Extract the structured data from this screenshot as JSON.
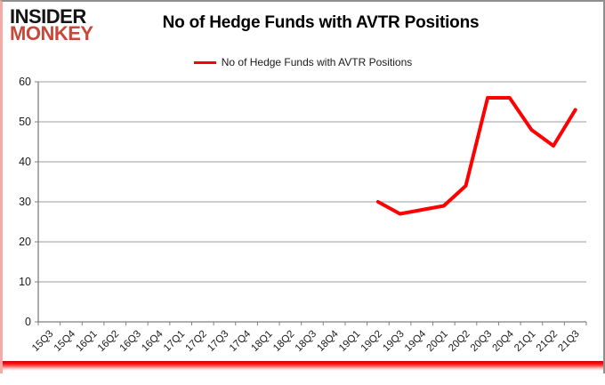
{
  "logo": {
    "line1": "INSIDER",
    "line2": "MONKEY",
    "line1_color": "#141414",
    "line2_color": "#c7483b"
  },
  "header": {
    "title": "No of Hedge Funds with AVTR Positions"
  },
  "legend": {
    "label": "No of Hedge Funds with AVTR Positions",
    "line_color": "#ff0000"
  },
  "frame": {
    "border_color": "#8f8f8f",
    "left_edge_color": "#f2aba5",
    "bottom_glow_color": "#ff0000",
    "background": "#ffffff"
  },
  "chart_data": {
    "type": "line",
    "title": "No of Hedge Funds with AVTR Positions",
    "categories": [
      "15Q3",
      "15Q4",
      "16Q1",
      "16Q2",
      "16Q3",
      "16Q4",
      "17Q1",
      "17Q2",
      "17Q3",
      "17Q4",
      "18Q1",
      "18Q2",
      "18Q3",
      "18Q4",
      "19Q1",
      "19Q2",
      "19Q3",
      "19Q4",
      "20Q1",
      "20Q2",
      "20Q3",
      "20Q4",
      "21Q1",
      "21Q2",
      "21Q3"
    ],
    "series": [
      {
        "name": "No of Hedge Funds with AVTR Positions",
        "color": "#ff0000",
        "values": [
          null,
          null,
          null,
          null,
          null,
          null,
          null,
          null,
          null,
          null,
          null,
          null,
          null,
          null,
          null,
          30,
          27,
          28,
          29,
          34,
          56,
          56,
          48,
          44,
          53
        ]
      }
    ],
    "xlabel": "",
    "ylabel": "",
    "ylim": [
      0,
      60
    ],
    "yticks": [
      0,
      10,
      20,
      30,
      40,
      50,
      60
    ],
    "grid": "horizontal",
    "legend_position": "top-center",
    "gridline_color": "#9c9c9c",
    "axis_color": "#7f7f7f",
    "tick_label_color": "#1a1a1a"
  }
}
